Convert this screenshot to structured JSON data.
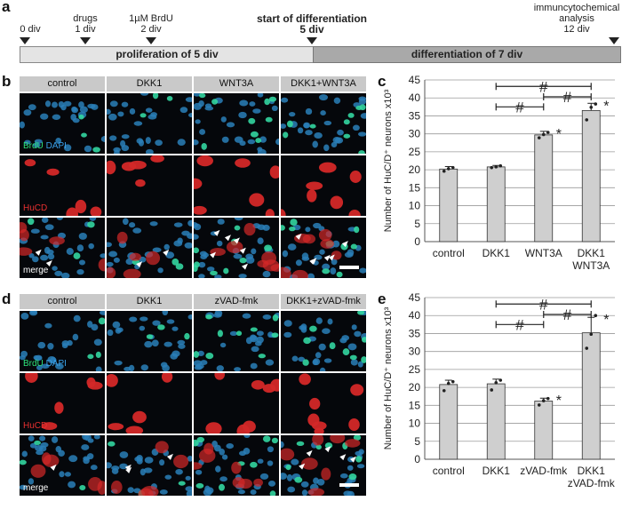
{
  "panels": {
    "a": "a",
    "b": "b",
    "c": "c",
    "d": "d",
    "e": "e"
  },
  "timeline": {
    "markers": [
      {
        "label": "0 div"
      },
      {
        "label": "drugs\n1 div"
      },
      {
        "label": "1µM BrdU\n2 div"
      },
      {
        "label": "start of differentiation\n5 div"
      },
      {
        "label": "immuncytochemical\nanalysis\n12 div"
      }
    ],
    "phase_proliferation": "proliferation of 5 div",
    "phase_differentiation": "differentiation of 7 div",
    "colors": {
      "proliferation": "#e4e4e4",
      "differentiation": "#a9a9a9"
    }
  },
  "grid_b": {
    "headers": [
      "control",
      "DKK1",
      "WNT3A",
      "DKK1+WNT3A"
    ],
    "row_labels": {
      "brdu": "BrdU",
      "dapi": "DAPI",
      "hucd": "HuCD",
      "merge": "merge"
    }
  },
  "grid_d": {
    "headers": [
      "control",
      "DKK1",
      "zVAD-fmk",
      "DKK1+zVAD-fmk"
    ],
    "row_labels": {
      "brdu": "BrdU",
      "dapi": "DAPI",
      "hucd": "HuCD",
      "merge": "merge"
    }
  },
  "chart_data": [
    {
      "type": "bar",
      "panel": "c",
      "categories": [
        "control",
        "DKK1",
        "WNT3A",
        "DKK1\nWNT3A"
      ],
      "values": [
        20.2,
        20.8,
        29.7,
        36.5
      ],
      "errors": [
        0.7,
        0.4,
        1.0,
        2.0
      ],
      "points": [
        [
          19.6,
          20.3,
          20.6
        ],
        [
          20.6,
          20.8,
          21.1
        ],
        [
          28.9,
          29.8,
          30.4
        ],
        [
          33.9,
          37.4,
          38.3
        ]
      ],
      "stars": [
        false,
        false,
        true,
        true
      ],
      "brackets": [
        {
          "from": 1,
          "to": 2,
          "label": "#"
        },
        {
          "from": 2,
          "to": 3,
          "label": "#"
        },
        {
          "from": 1,
          "to": 3,
          "label": "#"
        }
      ],
      "ylabel": "Number of HuC/D⁺ neurons x10³",
      "ylim": [
        0,
        45
      ],
      "yticks": [
        0,
        5,
        10,
        15,
        20,
        25,
        30,
        35,
        40,
        45
      ],
      "grid": true,
      "bar_color": "#cfcfcf"
    },
    {
      "type": "bar",
      "panel": "e",
      "categories": [
        "control",
        "DKK1",
        "zVAD-fmk",
        "DKK1\nzVAD-fmk"
      ],
      "values": [
        20.8,
        21.0,
        16.2,
        35.2
      ],
      "errors": [
        1.2,
        1.3,
        0.8,
        4.3
      ],
      "points": [
        [
          19.1,
          21.1,
          21.6
        ],
        [
          19.3,
          21.3,
          22.0
        ],
        [
          15.1,
          16.3,
          16.9
        ],
        [
          30.9,
          34.8,
          40.0
        ]
      ],
      "stars": [
        false,
        false,
        true,
        true
      ],
      "brackets": [
        {
          "from": 1,
          "to": 2,
          "label": "#"
        },
        {
          "from": 2,
          "to": 3,
          "label": "#"
        },
        {
          "from": 1,
          "to": 3,
          "label": "#"
        }
      ],
      "ylabel": "Number of HuC/D⁺ neurons x10³",
      "ylim": [
        0,
        45
      ],
      "yticks": [
        0,
        5,
        10,
        15,
        20,
        25,
        30,
        35,
        40,
        45
      ],
      "grid": true,
      "bar_color": "#cfcfcf"
    }
  ]
}
